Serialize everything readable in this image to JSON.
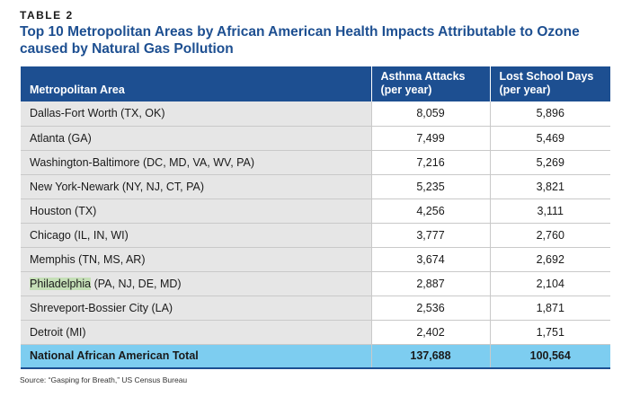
{
  "kicker": "TABLE 2",
  "title": "Top 10 Metropolitan Areas by African American Health Impacts Attributable to Ozone caused by Natural Gas Pollution",
  "columns": {
    "area": "Metropolitan Area",
    "asthma": "Asthma Attacks\n(per year)",
    "school": "Lost School Days\n(per year)"
  },
  "rows": [
    {
      "highlight": "",
      "area": "Dallas-Fort Worth (TX, OK)",
      "asthma": "8,059",
      "school": "5,896"
    },
    {
      "highlight": "",
      "area": "Atlanta (GA)",
      "asthma": "7,499",
      "school": "5,469"
    },
    {
      "highlight": "",
      "area": "Washington-Baltimore (DC, MD, VA, WV, PA)",
      "asthma": "7,216",
      "school": "5,269"
    },
    {
      "highlight": "",
      "area": "New York-Newark (NY, NJ, CT, PA)",
      "asthma": "5,235",
      "school": "3,821"
    },
    {
      "highlight": "",
      "area": "Houston (TX)",
      "asthma": "4,256",
      "school": "3,111"
    },
    {
      "highlight": "",
      "area": "Chicago (IL, IN, WI)",
      "asthma": "3,777",
      "school": "2,760"
    },
    {
      "highlight": "",
      "area": "Memphis (TN, MS, AR)",
      "asthma": "3,674",
      "school": "2,692"
    },
    {
      "highlight": "Philadelphia",
      "area": " (PA, NJ, DE, MD)",
      "asthma": "2,887",
      "school": "2,104"
    },
    {
      "highlight": "",
      "area": "Shreveport-Bossier City (LA)",
      "asthma": "2,536",
      "school": "1,871"
    },
    {
      "highlight": "",
      "area": "Detroit (MI)",
      "asthma": "2,402",
      "school": "1,751"
    }
  ],
  "total": {
    "area": "National African American Total",
    "asthma": "137,688",
    "school": "100,564"
  },
  "source": "Source: “Gasping for Breath,” US Census Bureau",
  "colors": {
    "header_bg": "#1d4f91",
    "area_bg": "#e6e6e6",
    "total_bg": "#7dcdf0",
    "highlight": "#c5dfb7"
  }
}
